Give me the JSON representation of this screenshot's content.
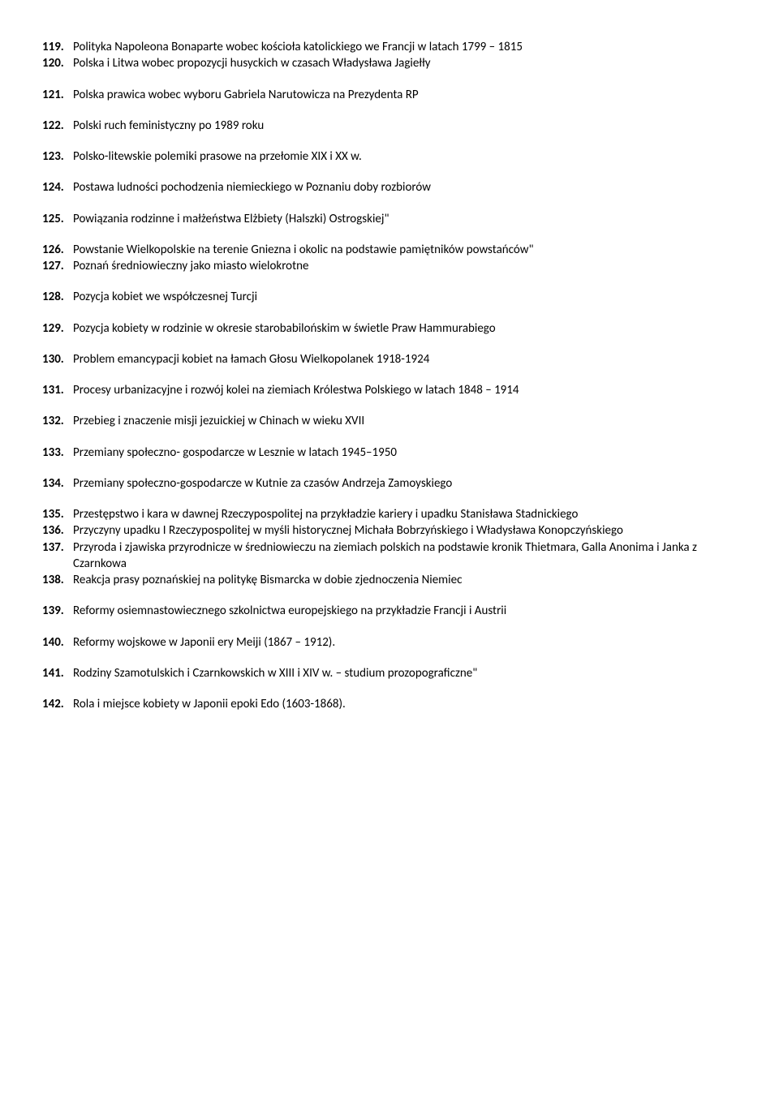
{
  "items": [
    {
      "num": "119.",
      "text": "Polityka Napoleona Bonaparte wobec kościoła katolickiego we Francji w latach 1799 – 1815",
      "gapAfter": false
    },
    {
      "num": "120.",
      "text": "Polska i Litwa wobec propozycji husyckich w czasach Władysława Jagiełły",
      "gapAfter": true
    },
    {
      "num": "121.",
      "text": "Polska prawica wobec wyboru Gabriela Narutowicza na Prezydenta RP",
      "gapAfter": true
    },
    {
      "num": "122.",
      "text": "Polski ruch feministyczny po 1989 roku",
      "gapAfter": true
    },
    {
      "num": "123.",
      "text": "Polsko-litewskie polemiki prasowe na przełomie XIX i XX w.",
      "gapAfter": true
    },
    {
      "num": "124.",
      "text": "Postawa ludności pochodzenia niemieckiego w Poznaniu doby rozbiorów",
      "gapAfter": true
    },
    {
      "num": "125.",
      "text": "Powiązania rodzinne i małżeństwa Elżbiety (Halszki) Ostrogskiej\"",
      "gapAfter": true
    },
    {
      "num": "126.",
      "text": "Powstanie Wielkopolskie na terenie Gniezna i okolic na podstawie pamiętników powstańców\"",
      "gapAfter": false
    },
    {
      "num": "127.",
      "text": "Poznań średniowieczny jako miasto wielokrotne",
      "gapAfter": true
    },
    {
      "num": "128.",
      "text": "Pozycja kobiet we współczesnej Turcji",
      "gapAfter": true
    },
    {
      "num": "129.",
      "text": "Pozycja kobiety w rodzinie w okresie starobabilońskim w świetle Praw Hammurabiego",
      "gapAfter": true
    },
    {
      "num": "130.",
      "text": "Problem emancypacji kobiet na łamach Głosu Wielkopolanek 1918-1924",
      "gapAfter": true
    },
    {
      "num": "131.",
      "text": "Procesy urbanizacyjne i rozwój kolei na ziemiach Królestwa Polskiego w latach 1848 – 1914",
      "gapAfter": true
    },
    {
      "num": "132.",
      "text": "Przebieg i znaczenie misji jezuickiej w Chinach w wieku XVII",
      "gapAfter": true
    },
    {
      "num": "133.",
      "text": "Przemiany społeczno- gospodarcze w Lesznie w latach 1945–1950",
      "gapAfter": true
    },
    {
      "num": "134.",
      "text": "Przemiany społeczno-gospodarcze w Kutnie za czasów Andrzeja Zamoyskiego",
      "gapAfter": true
    },
    {
      "num": "135.",
      "text": "Przestępstwo i kara w dawnej Rzeczypospolitej na przykładzie kariery i upadku Stanisława Stadnickiego",
      "gapAfter": false
    },
    {
      "num": "136.",
      "text": "Przyczyny upadku I Rzeczypospolitej w myśli historycznej Michała Bobrzyńskiego i Władysława Konopczyńskiego",
      "gapAfter": false
    },
    {
      "num": "137.",
      "text": "Przyroda i zjawiska przyrodnicze w średniowieczu na ziemiach polskich na podstawie kronik Thietmara, Galla Anonima i Janka z Czarnkowa",
      "gapAfter": false
    },
    {
      "num": "138.",
      "text": "Reakcja prasy poznańskiej na politykę Bismarcka w dobie zjednoczenia Niemiec",
      "gapAfter": true
    },
    {
      "num": "139.",
      "text": "Reformy osiemnastowiecznego szkolnictwa europejskiego na przykładzie Francji i Austrii",
      "gapAfter": true
    },
    {
      "num": "140.",
      "text": "Reformy wojskowe w Japonii ery Meiji (1867 – 1912).",
      "gapAfter": true
    },
    {
      "num": "141.",
      "text": "Rodziny Szamotulskich i Czarnkowskich w XIII i XIV w. – studium prozopograficzne\"",
      "gapAfter": true
    },
    {
      "num": "142.",
      "text": "Rola i miejsce kobiety w Japonii epoki Edo (1603-1868).",
      "gapAfter": false
    }
  ]
}
